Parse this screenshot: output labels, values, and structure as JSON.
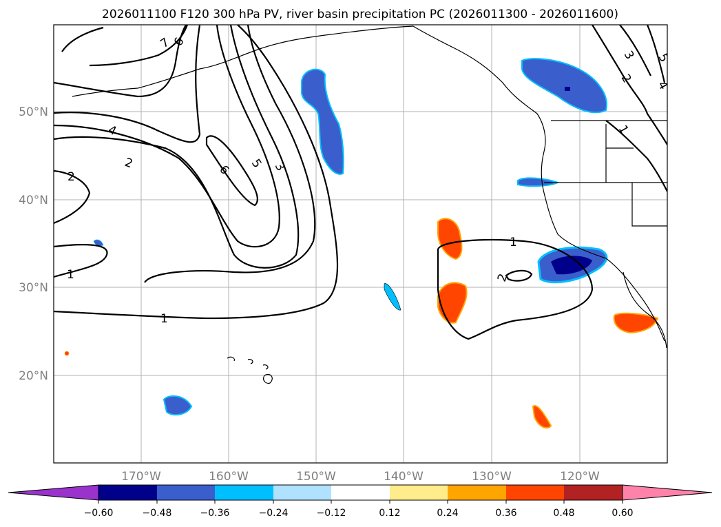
{
  "title": "2026011100 F120 300 hPa PV, river basin precipitation PC (2026011300 - 2026011600)",
  "lat_labels": [
    "50°N",
    "40°N",
    "30°N",
    "20°N"
  ],
  "lon_labels": [
    "170°W",
    "160°W",
    "150°W",
    "140°W",
    "130°W",
    "120°W"
  ],
  "colorbar": {
    "tick_labels": [
      "−0.60",
      "−0.48",
      "−0.36",
      "−0.24",
      "−0.12",
      "0.12",
      "0.24",
      "0.36",
      "0.48",
      "0.60"
    ],
    "colors": [
      "#9933cc",
      "#00008b",
      "#3a5fcd",
      "#00bfff",
      "#b0e2ff",
      "#ffffff",
      "#ffec8b",
      "#ffa500",
      "#ff4500",
      "#b22222",
      "#ff82ab"
    ]
  },
  "contour_labels": [
    "7",
    "6",
    "4",
    "2",
    "2",
    "1",
    "1",
    "6",
    "5",
    "3",
    "1",
    "2",
    "3",
    "2",
    "1",
    "4",
    "5"
  ]
}
